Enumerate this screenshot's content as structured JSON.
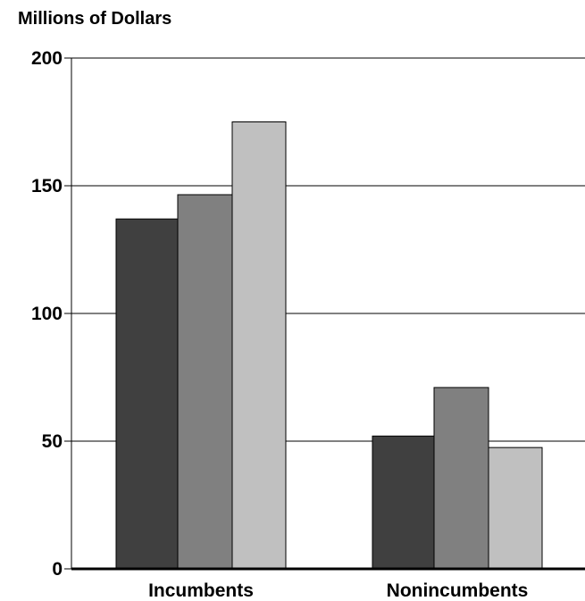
{
  "chart_data": {
    "type": "bar",
    "title": "",
    "xlabel": "",
    "ylabel": "Millions of Dollars",
    "ylim": [
      0,
      200
    ],
    "yticks": [
      0,
      50,
      100,
      150,
      200
    ],
    "grid": true,
    "categories": [
      "Incumbents",
      "Nonincumbents"
    ],
    "series": [
      {
        "values": [
          137,
          52
        ],
        "color": "#404040"
      },
      {
        "values": [
          146.5,
          71
        ],
        "color": "#808080"
      },
      {
        "values": [
          175,
          47.5
        ],
        "color": "#c0c0c0"
      }
    ]
  }
}
